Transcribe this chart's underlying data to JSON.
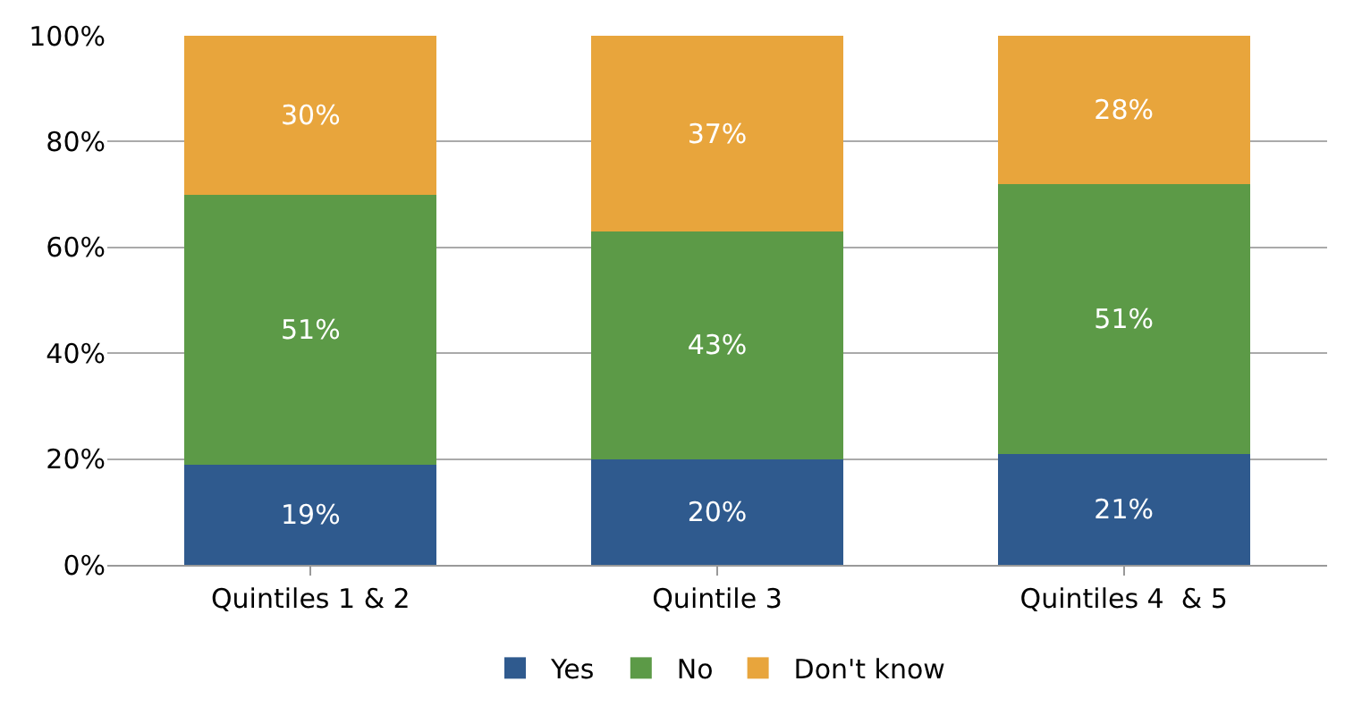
{
  "chart_data": {
    "type": "bar",
    "stacked": true,
    "categories": [
      "Quintiles 1 & 2",
      "Quintile 3",
      "Quintiles 4  & 5"
    ],
    "series": [
      {
        "name": "Yes",
        "color": "#2f5a8e",
        "values": [
          19,
          20,
          21
        ],
        "value_labels": [
          "19%",
          "20%",
          "21%"
        ]
      },
      {
        "name": "No",
        "color": "#5c9a47",
        "values": [
          51,
          43,
          51
        ],
        "value_labels": [
          "51%",
          "43%",
          "51%"
        ]
      },
      {
        "name": "Don't know",
        "color": "#e8a53c",
        "values": [
          30,
          37,
          28
        ],
        "value_labels": [
          "30%",
          "37%",
          "28%"
        ]
      }
    ],
    "ylim": [
      0,
      100
    ],
    "yticks": [
      {
        "value": 0,
        "label": "0%"
      },
      {
        "value": 20,
        "label": "20%"
      },
      {
        "value": 40,
        "label": "40%"
      },
      {
        "value": 60,
        "label": "60%"
      },
      {
        "value": 80,
        "label": "80%"
      },
      {
        "value": 100,
        "label": "100%"
      }
    ],
    "grid": "y",
    "legend": "bottom"
  }
}
